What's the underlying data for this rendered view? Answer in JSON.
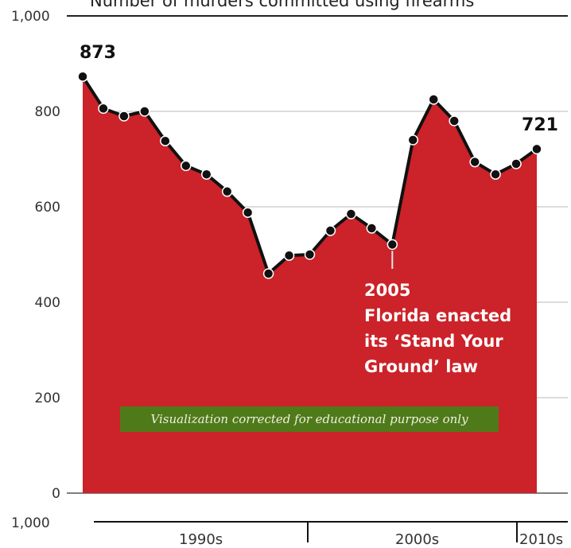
{
  "chart_data": {
    "type": "area",
    "title": "Number of murders committed using firearms",
    "ylim": [
      0,
      1000
    ],
    "yticks": [
      {
        "value": 0,
        "label": "0"
      },
      {
        "value": 200,
        "label": "200"
      },
      {
        "value": 400,
        "label": "400"
      },
      {
        "value": 600,
        "label": "600"
      },
      {
        "value": 800,
        "label": "800"
      },
      {
        "value": 1000,
        "label": "1,000"
      }
    ],
    "bottom_axis_label": "1,000",
    "x": [
      1990,
      1991,
      1992,
      1993,
      1994,
      1995,
      1996,
      1997,
      1998,
      1999,
      2000,
      2001,
      2002,
      2003,
      2004,
      2005,
      2006,
      2007,
      2008,
      2009,
      2010,
      2011,
      2012
    ],
    "values": [
      873,
      806,
      790,
      800,
      738,
      686,
      668,
      632,
      588,
      460,
      498,
      500,
      550,
      585,
      555,
      521,
      740,
      825,
      780,
      694,
      668,
      690,
      721
    ],
    "grid": true,
    "decades": [
      "1990s",
      "2000s",
      "2010s"
    ],
    "labels": {
      "first": "873",
      "last": "721"
    },
    "annotation": {
      "x": 2005,
      "year": "2005",
      "lines": [
        "Florida enacted",
        "its ‘Stand Your",
        "Ground’ law"
      ]
    },
    "colors": {
      "fill": "#cc2229",
      "line": "#111111",
      "grid": "#b8b8b8",
      "annotation_line": "#e8e8e8"
    }
  },
  "watermark": "Visualization corrected  for educational purpose only"
}
